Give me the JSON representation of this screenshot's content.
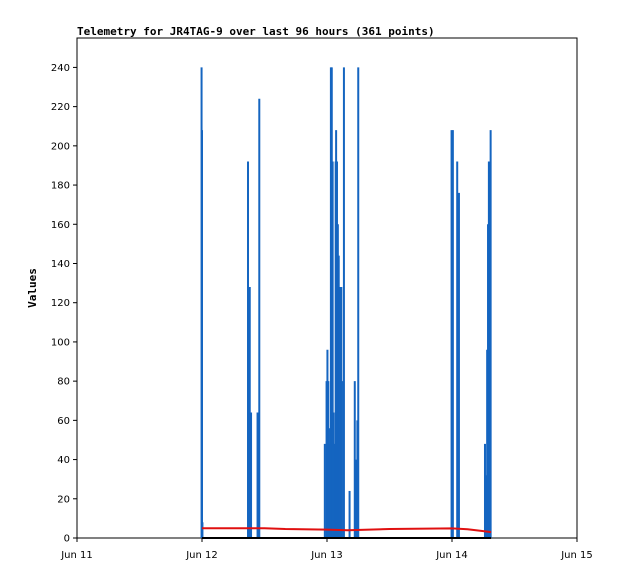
{
  "chart_data": {
    "type": "line",
    "title": "Telemetry for JR4TAG-9 over last 96 hours (361 points)",
    "xlabel": "",
    "ylabel": "Values",
    "xlim": [
      "Jun 11",
      "Jun 15"
    ],
    "ylim": [
      0,
      255
    ],
    "x_ticks": [
      "Jun 11",
      "Jun 12",
      "Jun 13",
      "Jun 14",
      "Jun 15"
    ],
    "y_ticks": [
      0,
      20,
      40,
      60,
      80,
      100,
      120,
      140,
      160,
      180,
      200,
      220,
      240
    ],
    "grid": false,
    "legend": "none",
    "series": [
      {
        "color": "#1565c0",
        "style": "spikes",
        "points": [
          [
            "Jun 11 23:55",
            240
          ],
          [
            "Jun 12 00:00",
            208
          ],
          [
            "Jun 12 00:05",
            8
          ],
          [
            "Jun 12 08:50",
            192
          ],
          [
            "Jun 12 09:10",
            128
          ],
          [
            "Jun 12 09:25",
            64
          ],
          [
            "Jun 12 10:40",
            64
          ],
          [
            "Jun 12 11:00",
            224
          ],
          [
            "Jun 12 23:35",
            48
          ],
          [
            "Jun 12 23:55",
            80
          ],
          [
            "Jun 13 00:05",
            96
          ],
          [
            "Jun 13 00:15",
            80
          ],
          [
            "Jun 13 00:25",
            48
          ],
          [
            "Jun 13 00:35",
            56
          ],
          [
            "Jun 13 00:45",
            240
          ],
          [
            "Jun 13 00:55",
            240
          ],
          [
            "Jun 13 01:05",
            192
          ],
          [
            "Jun 13 01:15",
            64
          ],
          [
            "Jun 13 01:25",
            48
          ],
          [
            "Jun 13 01:35",
            32
          ],
          [
            "Jun 13 01:40",
            192
          ],
          [
            "Jun 13 01:45",
            208
          ],
          [
            "Jun 13 01:55",
            192
          ],
          [
            "Jun 13 02:05",
            160
          ],
          [
            "Jun 13 02:15",
            144
          ],
          [
            "Jun 13 02:25",
            128
          ],
          [
            "Jun 13 02:35",
            56
          ],
          [
            "Jun 13 02:45",
            128
          ],
          [
            "Jun 13 03:05",
            80
          ],
          [
            "Jun 13 03:15",
            240
          ],
          [
            "Jun 13 04:20",
            24
          ],
          [
            "Jun 13 05:20",
            80
          ],
          [
            "Jun 13 05:35",
            40
          ],
          [
            "Jun 13 05:50",
            60
          ],
          [
            "Jun 13 06:00",
            240
          ],
          [
            "Jun 13 23:55",
            208
          ],
          [
            "Jun 14 00:10",
            208
          ],
          [
            "Jun 14 01:00",
            192
          ],
          [
            "Jun 14 01:20",
            176
          ],
          [
            "Jun 14 06:20",
            48
          ],
          [
            "Jun 14 06:35",
            32
          ],
          [
            "Jun 14 06:45",
            96
          ],
          [
            "Jun 14 06:55",
            160
          ],
          [
            "Jun 14 07:05",
            192
          ],
          [
            "Jun 14 07:15",
            192
          ],
          [
            "Jun 14 07:25",
            208
          ]
        ]
      },
      {
        "color": "#e01010",
        "style": "line",
        "points": [
          [
            "Jun 12 00:00",
            5.0
          ],
          [
            "Jun 12 12:00",
            5.0
          ],
          [
            "Jun 12 16:00",
            4.6
          ],
          [
            "Jun 12 23:59",
            4.3
          ],
          [
            "Jun 13 04:00",
            4.0
          ],
          [
            "Jun 13 12:00",
            4.6
          ],
          [
            "Jun 14 00:00",
            4.9
          ],
          [
            "Jun 14 03:00",
            4.5
          ],
          [
            "Jun 14 06:00",
            3.5
          ],
          [
            "Jun 14 07:30",
            3.0
          ]
        ]
      },
      {
        "color": "#000000",
        "style": "line",
        "points": [
          [
            "Jun 12 00:00",
            0
          ],
          [
            "Jun 14 07:30",
            0
          ]
        ]
      }
    ]
  }
}
